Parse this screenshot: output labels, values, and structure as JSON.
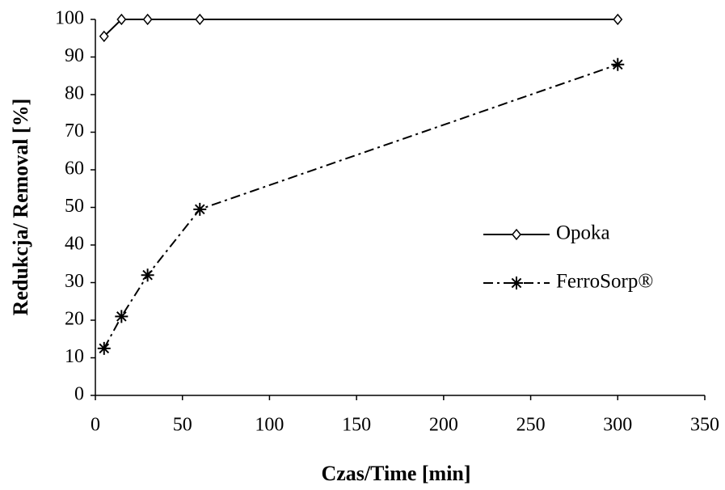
{
  "chart_data": {
    "type": "line",
    "x_label": "Czas/Time [min]",
    "y_label": "Redukcja/ Removal [%]",
    "x": [
      5,
      15,
      30,
      60,
      300
    ],
    "series": [
      {
        "name": "Opoka",
        "color": "#000000",
        "dash": "solid",
        "marker": "diamond",
        "values": [
          95.5,
          100,
          100,
          100,
          100
        ]
      },
      {
        "name": "FerroSorp®",
        "color": "#000000",
        "dash": "dashdot",
        "marker": "asterisk",
        "values": [
          12.5,
          21,
          32,
          49.5,
          88
        ]
      }
    ],
    "xlim": [
      0,
      350
    ],
    "xticks": [
      0,
      50,
      100,
      150,
      200,
      250,
      300,
      350
    ],
    "ylim": [
      0,
      100
    ],
    "yticks": [
      0,
      10,
      20,
      30,
      40,
      50,
      60,
      70,
      80,
      90,
      100
    ],
    "grid": false,
    "legend": "right"
  }
}
